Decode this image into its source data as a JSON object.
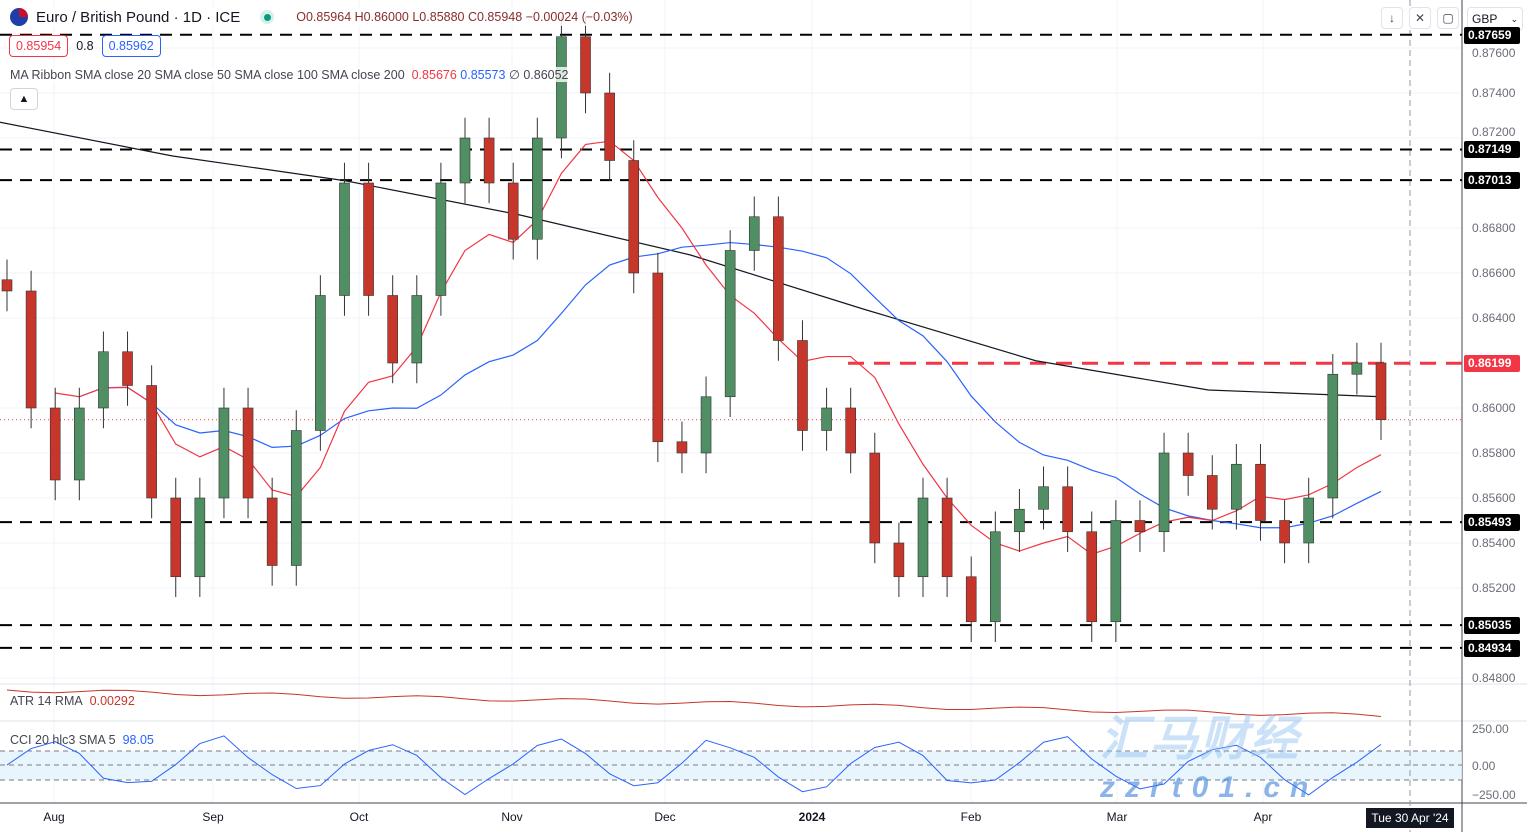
{
  "header": {
    "symbol": "Euro / British Pound · 1D · ICE",
    "open": "O0.85964",
    "high": "H0.86000",
    "low": "L0.85880",
    "close": "C0.85948",
    "change": "−0.00024 (−0.03%)"
  },
  "quote": {
    "bid": "0.85954",
    "spread": "0.8",
    "ask": "0.85962"
  },
  "ribbon": {
    "label": "MA Ribbon SMA close 20 SMA close 50 SMA close 100 SMA close 200",
    "v1": "0.85676",
    "v2": "0.85573",
    "v3": "∅",
    "v4": "0.86052"
  },
  "atr": {
    "label": "ATR 14 RMA",
    "value": "0.00292"
  },
  "cci": {
    "label": "CCI 20 hlc3 SMA 5",
    "value": "98.05",
    "ticks": [
      "250.00",
      "0.00",
      "−250.00"
    ]
  },
  "toolbar": {
    "currency": "GBP",
    "icons": [
      "arrow-down-icon",
      "collapse-icon",
      "fullscreen-icon"
    ]
  },
  "crosshair_date": "Tue 30 Apr '24",
  "watermark": {
    "text": "汇马财经",
    "url": "zzrt01.cn"
  },
  "colors": {
    "up": "#4f8f63",
    "down": "#c6362b",
    "sma20": "#f23645",
    "sma50": "#2962ff",
    "sma200": "#131722",
    "resistance": "#f23645"
  },
  "chart_data": {
    "type": "candlestick",
    "title": "Euro / British Pound · 1D · ICE",
    "x_ticks": [
      "Aug",
      "Sep",
      "Oct",
      "Nov",
      "Dec",
      "2024",
      "Feb",
      "Mar",
      "Apr"
    ],
    "y_ticks": [
      "0.87600",
      "0.87400",
      "0.87200",
      "0.86800",
      "0.86600",
      "0.86400",
      "0.86000",
      "0.85800",
      "0.85600",
      "0.85400",
      "0.85200",
      "0.84800"
    ],
    "ylim": [
      0.8477,
      0.877
    ],
    "closes": [
      0.8652,
      0.86,
      0.8568,
      0.86,
      0.8625,
      0.861,
      0.856,
      0.8525,
      0.856,
      0.86,
      0.856,
      0.853,
      0.859,
      0.865,
      0.87,
      0.865,
      0.862,
      0.865,
      0.87,
      0.872,
      0.87,
      0.8675,
      0.872,
      0.8765,
      0.874,
      0.871,
      0.866,
      0.8585,
      0.858,
      0.8605,
      0.867,
      0.8685,
      0.863,
      0.859,
      0.86,
      0.858,
      0.854,
      0.8525,
      0.856,
      0.8525,
      0.8505,
      0.8545,
      0.8555,
      0.8565,
      0.8545,
      0.8505,
      0.855,
      0.8545,
      0.858,
      0.857,
      0.8555,
      0.8575,
      0.855,
      0.854,
      0.856,
      0.8615,
      0.862,
      0.85948
    ],
    "sma200": [
      0.8727,
      0.8712,
      0.8701,
      0.8686,
      0.8668,
      0.8644,
      0.8621,
      0.8608,
      0.8605
    ],
    "levels": [
      {
        "label": "0.87659",
        "value": 0.87659
      },
      {
        "label": "0.87149",
        "value": 0.87149
      },
      {
        "label": "0.87013",
        "value": 0.87013
      },
      {
        "label": "0.85493",
        "value": 0.85493
      },
      {
        "label": "0.85035",
        "value": 0.85035
      },
      {
        "label": "0.84934",
        "value": 0.84934
      }
    ],
    "resistance": {
      "label": "0.86199",
      "value": 0.86199
    },
    "last_price": 0.85948
  }
}
